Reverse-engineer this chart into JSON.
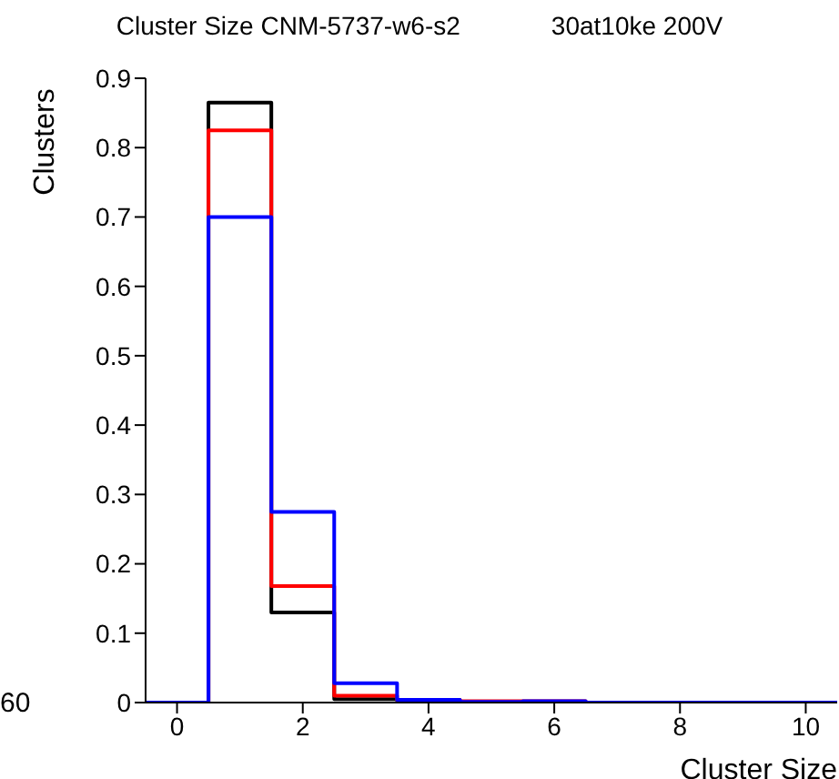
{
  "chart_data": {
    "type": "histogram",
    "title": "Cluster Size CNM-5737-w6-s2",
    "subtitle": "30at10ke 200V",
    "xlabel": "Cluster Size",
    "ylabel": "Clusters",
    "bins": [
      -0.5,
      0.5,
      1.5,
      2.5,
      3.5,
      4.5,
      5.5,
      6.5,
      7.5,
      8.5,
      9.5,
      10.5
    ],
    "series": [
      {
        "color": "#000000",
        "values": [
          0,
          0.865,
          0.13,
          0.005,
          0.003,
          0,
          0,
          0,
          0,
          0,
          0
        ]
      },
      {
        "color": "#ff0000",
        "values": [
          0,
          0.825,
          0.168,
          0.01,
          0.004,
          0.002,
          0.002,
          0,
          0,
          0,
          0
        ]
      },
      {
        "color": "#0000ff",
        "values": [
          0,
          0.7,
          0.275,
          0.028,
          0.004,
          0.001,
          0.002,
          0,
          0,
          0,
          0
        ]
      }
    ],
    "xlim": [
      -0.5,
      10.5
    ],
    "xticks": [
      0,
      2,
      4,
      6,
      8,
      10
    ],
    "ylim": [
      0,
      0.9
    ],
    "yticks": [
      0,
      0.1,
      0.2,
      0.3,
      0.4,
      0.5,
      0.6,
      0.7,
      0.8,
      0.9
    ],
    "grid": false,
    "legend": false,
    "annotations": [
      "60"
    ]
  }
}
